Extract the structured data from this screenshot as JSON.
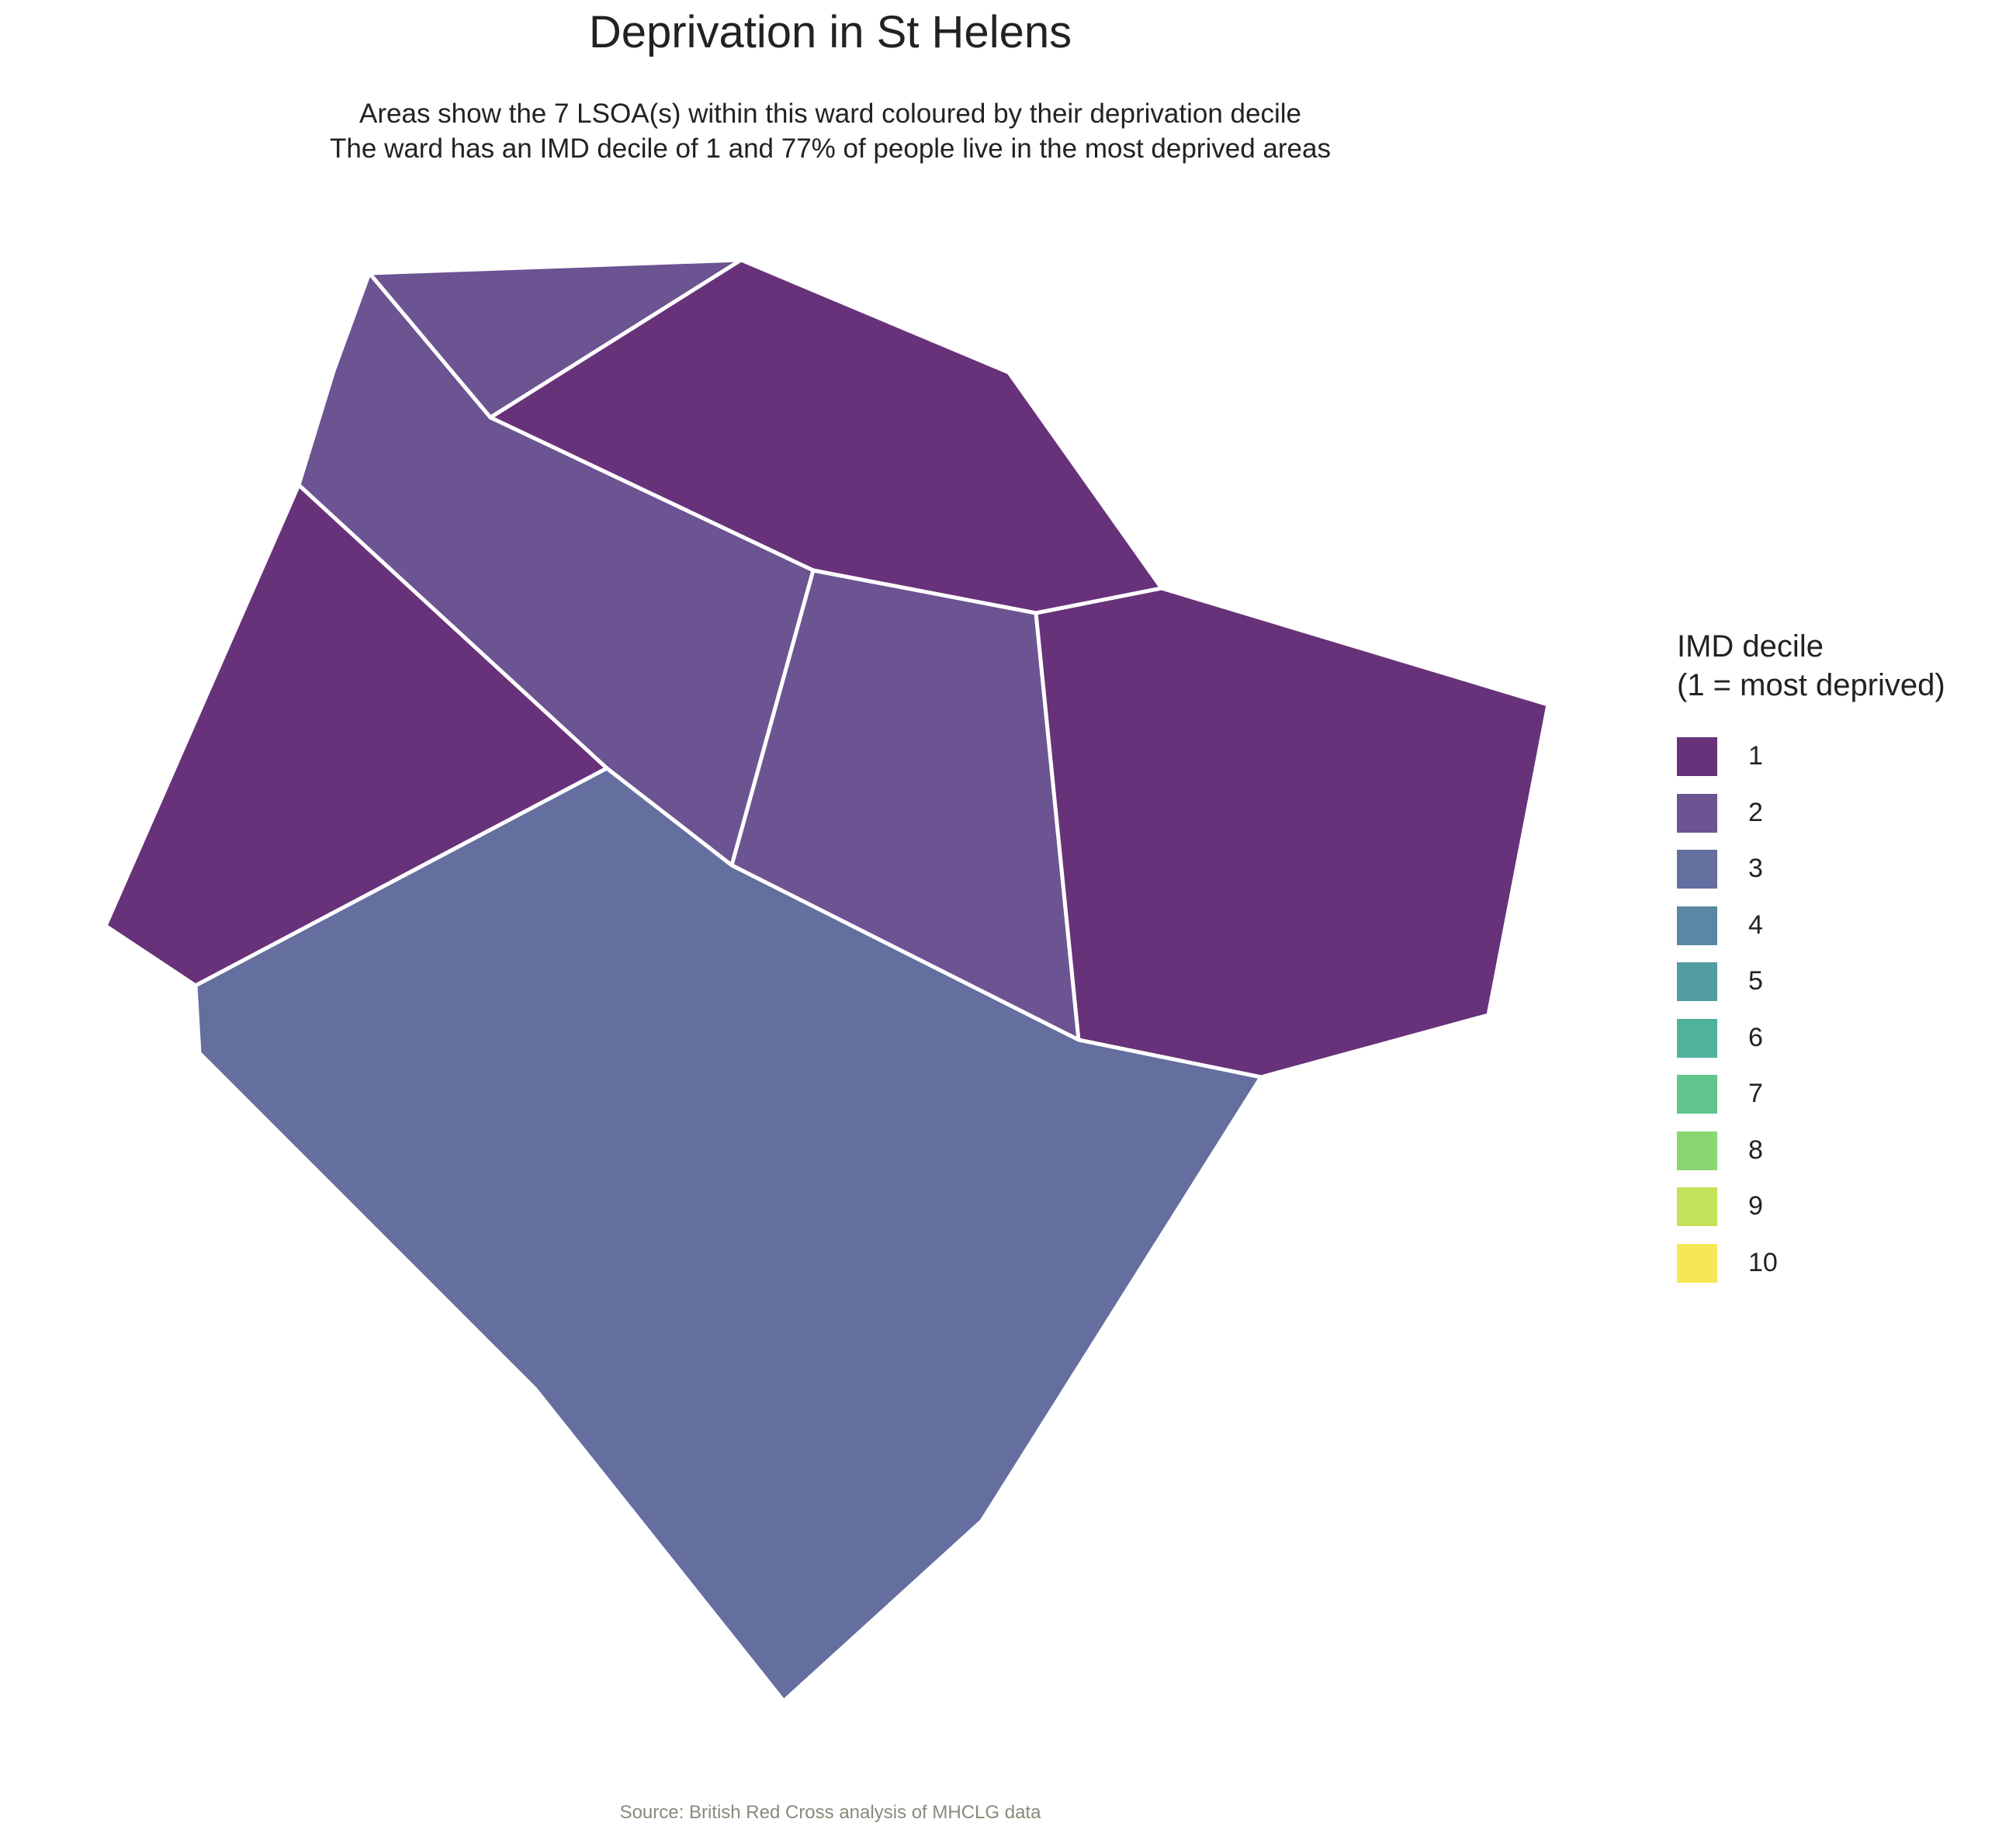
{
  "title": "Deprivation in St Helens",
  "subtitle": [
    "Areas show the 7 LSOA(s) within this ward coloured by their deprivation decile",
    "The ward has an IMD decile of 1 and 77% of people live in the most deprived areas"
  ],
  "legend": {
    "title_lines": [
      "IMD decile",
      "(1 = most deprived)"
    ],
    "items": [
      {
        "label": "1",
        "color": "#68327A"
      },
      {
        "label": "2",
        "color": "#6C5392"
      },
      {
        "label": "3",
        "color": "#646E9F"
      },
      {
        "label": "4",
        "color": "#5A87A3"
      },
      {
        "label": "5",
        "color": "#539DA3"
      },
      {
        "label": "6",
        "color": "#4FB39C"
      },
      {
        "label": "7",
        "color": "#62C58D"
      },
      {
        "label": "8",
        "color": "#8AD670"
      },
      {
        "label": "9",
        "color": "#C4E15A"
      },
      {
        "label": "10",
        "color": "#F7E655"
      }
    ]
  },
  "map": {
    "border_color": "#FFFFFF",
    "areas": [
      {
        "id": "lsoa-a",
        "decile": 2
      },
      {
        "id": "lsoa-b",
        "decile": 1
      },
      {
        "id": "lsoa-c",
        "decile": 2
      },
      {
        "id": "lsoa-d",
        "decile": 1
      },
      {
        "id": "lsoa-e",
        "decile": 2
      },
      {
        "id": "lsoa-f",
        "decile": 1
      },
      {
        "id": "lsoa-g",
        "decile": 3
      }
    ]
  },
  "caption": "Source: British Red Cross analysis of MHCLG data"
}
